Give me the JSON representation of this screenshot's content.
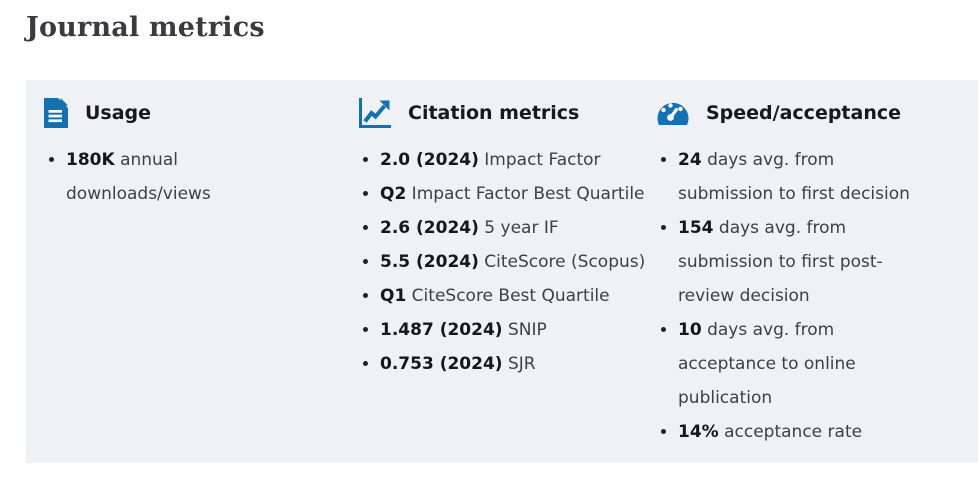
{
  "title": "Journal metrics",
  "colors": {
    "accent_blue": "#1270b4",
    "panel_background": "#f0f1f5",
    "title_text": "#3a3a40",
    "body_text": "#3f3f3f",
    "bold_text": "#17171a"
  },
  "columns": [
    {
      "id": "usage",
      "icon": "document-icon",
      "heading": "Usage",
      "items": [
        {
          "value": "180K",
          "text": "annual downloads/views"
        }
      ]
    },
    {
      "id": "citation",
      "icon": "line-chart-icon",
      "heading": "Citation metrics",
      "items": [
        {
          "value": "2.0 (2024)",
          "text": "Impact Factor"
        },
        {
          "value": "Q2",
          "text": "Impact Factor Best Quartile"
        },
        {
          "value": "2.6 (2024)",
          "text": "5 year IF"
        },
        {
          "value": "5.5 (2024)",
          "text": "CiteScore (Scopus)"
        },
        {
          "value": "Q1",
          "text": "CiteScore Best Quartile"
        },
        {
          "value": "1.487 (2024)",
          "text": "SNIP"
        },
        {
          "value": "0.753 (2024)",
          "text": "SJR"
        }
      ]
    },
    {
      "id": "speed",
      "icon": "speedometer-icon",
      "heading": "Speed/acceptance",
      "items": [
        {
          "value": "24",
          "text": "days avg. from submission to first decision"
        },
        {
          "value": "154",
          "text": "days avg. from submission to first post-review decision"
        },
        {
          "value": "10",
          "text": "days avg. from acceptance to online publication"
        },
        {
          "value": "14%",
          "text": "acceptance rate"
        }
      ]
    }
  ]
}
